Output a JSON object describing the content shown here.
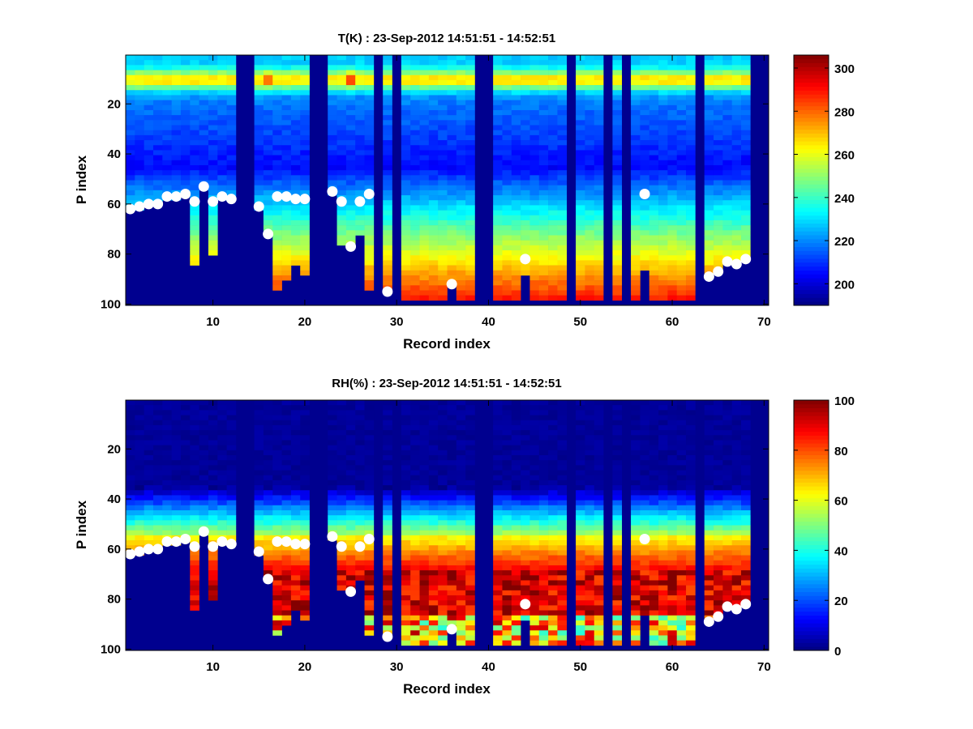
{
  "chart_data": [
    {
      "type": "heatmap",
      "title": "T(K) : 23-Sep-2012 14:51:51 - 14:52:51",
      "xlabel": "Record index",
      "ylabel": "P index",
      "xlim": [
        0.5,
        70.5
      ],
      "ylim": [
        0.5,
        100.5
      ],
      "y_reversed": true,
      "xticks": [
        10,
        20,
        30,
        40,
        50,
        60,
        70
      ],
      "yticks": [
        20,
        40,
        60,
        80,
        100
      ],
      "colormap": "jet",
      "colorbar": {
        "range": [
          190,
          306
        ],
        "ticks": [
          200,
          220,
          240,
          260,
          280,
          300
        ]
      },
      "fill_value_color": "#00008f",
      "missing_records": [
        13,
        14,
        21,
        22,
        28,
        30,
        39,
        40,
        49,
        53,
        55,
        63,
        69,
        70
      ],
      "profile_bottom": {
        "1": 62,
        "2": 61,
        "3": 60,
        "4": 60,
        "5": 57,
        "6": 57,
        "7": 56,
        "8": 84,
        "9": 53,
        "10": 80,
        "11": 57,
        "12": 58,
        "15": 61,
        "16": 72,
        "17": 93,
        "18": 90,
        "19": 84,
        "20": 87,
        "23": 55,
        "24": 75,
        "25": 75,
        "26": 71,
        "27": 94,
        "29": 94,
        "31": 98,
        "32": 98,
        "33": 98,
        "34": 98,
        "35": 98,
        "36": 92,
        "37": 98,
        "38": 98,
        "41": 98,
        "42": 98,
        "43": 98,
        "44": 87,
        "45": 98,
        "46": 98,
        "47": 98,
        "48": 98,
        "50": 98,
        "51": 98,
        "52": 98,
        "54": 98,
        "56": 98,
        "57": 85,
        "58": 98,
        "59": 98,
        "60": 98,
        "61": 98,
        "62": 98,
        "64": 88,
        "65": 86,
        "66": 82,
        "67": 83,
        "68": 81
      },
      "profile_model": {
        "description": "Temperature per column: ~225 K at top, warm band ~268 K at P≈10, minimum ~205 K at P≈45, rising to ~290 K near P≈98",
        "hotspots": [
          {
            "record": 16,
            "p": 10,
            "value": 285
          },
          {
            "record": 25,
            "p": 10,
            "value": 288
          }
        ]
      },
      "markers": {
        "color": "#ffffff",
        "points": [
          [
            1,
            62
          ],
          [
            2,
            61
          ],
          [
            3,
            60
          ],
          [
            4,
            60
          ],
          [
            5,
            57
          ],
          [
            6,
            57
          ],
          [
            7,
            56
          ],
          [
            8,
            59
          ],
          [
            9,
            53
          ],
          [
            10,
            59
          ],
          [
            11,
            57
          ],
          [
            12,
            58
          ],
          [
            15,
            61
          ],
          [
            16,
            72
          ],
          [
            17,
            57
          ],
          [
            18,
            57
          ],
          [
            19,
            58
          ],
          [
            20,
            58
          ],
          [
            23,
            55
          ],
          [
            24,
            59
          ],
          [
            25,
            77
          ],
          [
            26,
            59
          ],
          [
            27,
            56
          ],
          [
            29,
            95
          ],
          [
            36,
            92
          ],
          [
            44,
            82
          ],
          [
            57,
            56
          ],
          [
            64,
            89
          ],
          [
            65,
            87
          ],
          [
            66,
            83
          ],
          [
            67,
            84
          ],
          [
            68,
            82
          ]
        ]
      }
    },
    {
      "type": "heatmap",
      "title": "RH(%) : 23-Sep-2012 14:51:51 - 14:52:51",
      "xlabel": "Record index",
      "ylabel": "P index",
      "xlim": [
        0.5,
        70.5
      ],
      "ylim": [
        0.5,
        100.5
      ],
      "y_reversed": true,
      "xticks": [
        10,
        20,
        30,
        40,
        50,
        60,
        70
      ],
      "yticks": [
        20,
        40,
        60,
        80,
        100
      ],
      "colormap": "jet",
      "colorbar": {
        "range": [
          0,
          100
        ],
        "ticks": [
          0,
          20,
          40,
          60,
          80,
          100
        ]
      },
      "fill_value_color": "#00008f",
      "missing_records": [
        13,
        14,
        21,
        22,
        28,
        30,
        39,
        40,
        49,
        53,
        55,
        63,
        69,
        70
      ],
      "profile_model": {
        "description": "RH ~0% above P≈35, rising through blue to ~55-65% near P≈55-60, 70-100% (saturated bands) between P≈70-85, mixed 30-90% near the bottom"
      },
      "markers": {
        "color": "#ffffff",
        "points": [
          [
            1,
            62
          ],
          [
            2,
            61
          ],
          [
            3,
            60
          ],
          [
            4,
            60
          ],
          [
            5,
            57
          ],
          [
            6,
            57
          ],
          [
            7,
            56
          ],
          [
            8,
            59
          ],
          [
            9,
            53
          ],
          [
            10,
            59
          ],
          [
            11,
            57
          ],
          [
            12,
            58
          ],
          [
            15,
            61
          ],
          [
            16,
            72
          ],
          [
            17,
            57
          ],
          [
            18,
            57
          ],
          [
            19,
            58
          ],
          [
            20,
            58
          ],
          [
            23,
            55
          ],
          [
            24,
            59
          ],
          [
            25,
            77
          ],
          [
            26,
            59
          ],
          [
            27,
            56
          ],
          [
            29,
            95
          ],
          [
            36,
            92
          ],
          [
            44,
            82
          ],
          [
            57,
            56
          ],
          [
            64,
            89
          ],
          [
            65,
            87
          ],
          [
            66,
            83
          ],
          [
            67,
            84
          ],
          [
            68,
            82
          ]
        ]
      }
    }
  ]
}
